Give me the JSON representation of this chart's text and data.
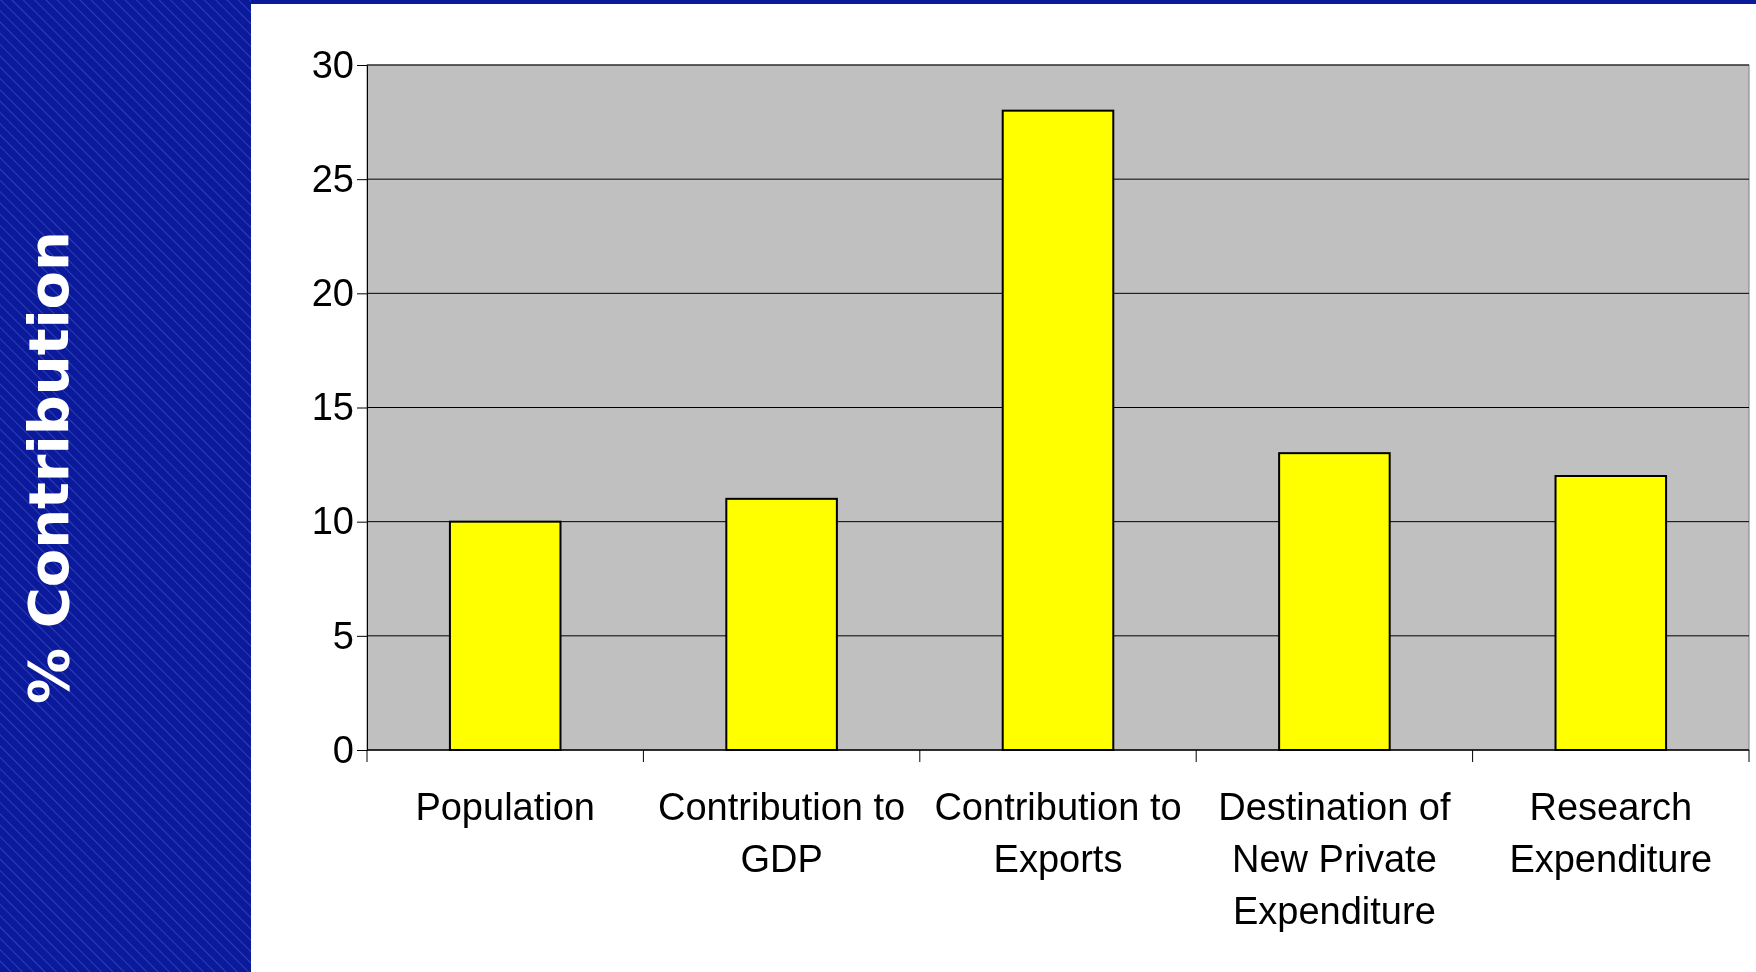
{
  "chart_data": {
    "type": "bar",
    "ylabel": "% Contribution",
    "categories": [
      "Population",
      "Contribution to GDP",
      "Contribution to Exports",
      "Destination of New Private Expenditure",
      "Research Expenditure"
    ],
    "values": [
      10,
      11,
      28,
      13,
      12
    ],
    "color": "#ffff00",
    "ylim": [
      0,
      30
    ],
    "yticks": [
      0,
      5,
      10,
      15,
      20,
      25,
      30
    ],
    "grid": "y"
  }
}
